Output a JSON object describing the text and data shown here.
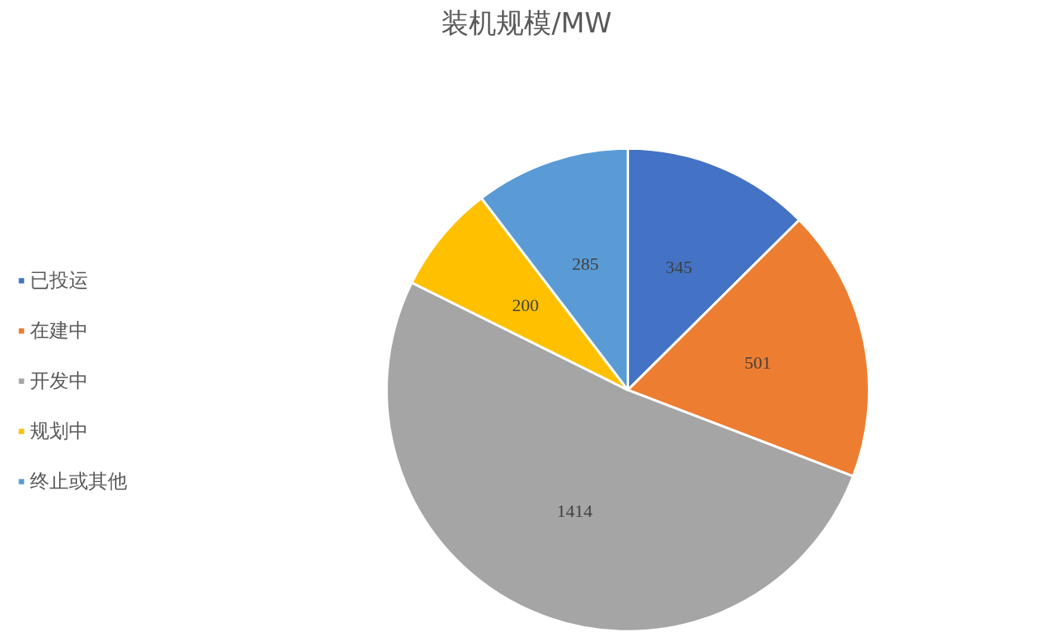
{
  "chart_data": {
    "type": "pie",
    "title": "装机规模/MW",
    "categories": [
      "已投运",
      "在建中",
      "开发中",
      "规划中",
      "终止或其他"
    ],
    "values": [
      345,
      501,
      1414,
      200,
      285
    ],
    "colors": [
      "#4472c4",
      "#ed7d31",
      "#a5a5a5",
      "#ffc000",
      "#5b9bd5"
    ],
    "data_labels": true,
    "legend": "left"
  }
}
